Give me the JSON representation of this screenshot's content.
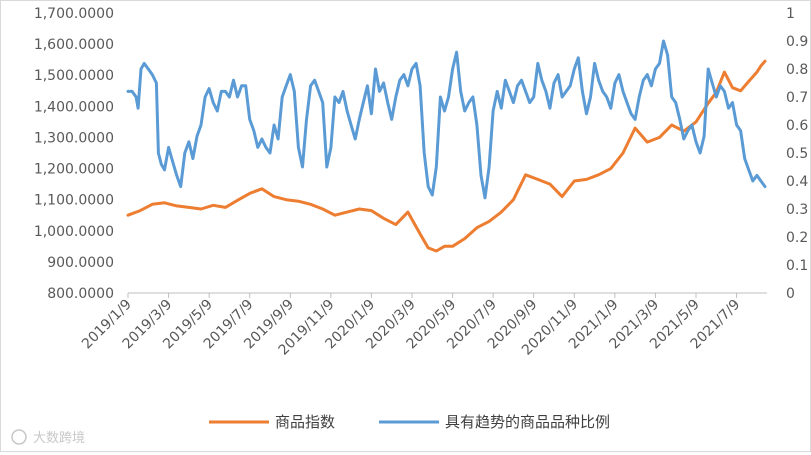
{
  "chart_data": {
    "type": "line",
    "title": "",
    "xlabel": "",
    "ylabel": "",
    "y_left": {
      "ylim": [
        800,
        1700
      ],
      "ticks": [
        "800.0000",
        "900.0000",
        "1,000.0000",
        "1,100.0000",
        "1,200.0000",
        "1,300.0000",
        "1,400.0000",
        "1,500.0000",
        "1,600.0000",
        "1,700.0000"
      ]
    },
    "y_right": {
      "ylim": [
        0,
        1
      ],
      "ticks": [
        "0",
        "0.1",
        "0.2",
        "0.3",
        "0.4",
        "0.5",
        "0.6",
        "0.7",
        "0.8",
        "0.9",
        "1"
      ]
    },
    "x_ticks": [
      "2019/1/9",
      "2019/3/9",
      "2019/5/9",
      "2019/7/9",
      "2019/9/9",
      "2019/11/9",
      "2020/1/9",
      "2020/3/9",
      "2020/5/9",
      "2020/7/9",
      "2020/9/9",
      "2020/11/9",
      "2021/1/9",
      "2021/3/9",
      "2021/5/9",
      "2021/7/9"
    ],
    "x_range": [
      0,
      15.75
    ],
    "grid": false,
    "legend_position": "bottom",
    "series": [
      {
        "name": "商品指数",
        "axis": "left",
        "color": "#ED7D31",
        "x": [
          0,
          0.3,
          0.6,
          0.9,
          1.2,
          1.5,
          1.8,
          2.1,
          2.4,
          2.7,
          3.0,
          3.3,
          3.6,
          3.9,
          4.2,
          4.5,
          4.8,
          5.1,
          5.4,
          5.7,
          6.0,
          6.3,
          6.6,
          6.9,
          7.2,
          7.4,
          7.6,
          7.8,
          8.0,
          8.3,
          8.6,
          8.9,
          9.2,
          9.5,
          9.8,
          10.1,
          10.4,
          10.7,
          11.0,
          11.3,
          11.6,
          11.9,
          12.2,
          12.5,
          12.8,
          13.1,
          13.4,
          13.7,
          14.0,
          14.3,
          14.5,
          14.7,
          14.9,
          15.1,
          15.3,
          15.5,
          15.6,
          15.7
        ],
        "values": [
          1050,
          1065,
          1085,
          1090,
          1080,
          1075,
          1070,
          1082,
          1075,
          1098,
          1120,
          1135,
          1110,
          1100,
          1095,
          1085,
          1070,
          1050,
          1060,
          1070,
          1065,
          1040,
          1020,
          1060,
          990,
          945,
          935,
          950,
          950,
          975,
          1010,
          1030,
          1060,
          1100,
          1180,
          1165,
          1150,
          1110,
          1160,
          1165,
          1180,
          1200,
          1250,
          1330,
          1285,
          1300,
          1340,
          1320,
          1350,
          1410,
          1445,
          1510,
          1460,
          1450,
          1480,
          1510,
          1530,
          1545
        ]
      },
      {
        "name": "具有趋势的商品品种比例",
        "axis": "right",
        "color": "#5B9BD5",
        "x": [
          0,
          0.1,
          0.2,
          0.25,
          0.32,
          0.4,
          0.5,
          0.6,
          0.7,
          0.75,
          0.82,
          0.9,
          1.0,
          1.1,
          1.2,
          1.3,
          1.4,
          1.5,
          1.6,
          1.7,
          1.8,
          1.9,
          2.0,
          2.1,
          2.2,
          2.3,
          2.4,
          2.5,
          2.6,
          2.7,
          2.8,
          2.9,
          3.0,
          3.1,
          3.2,
          3.3,
          3.4,
          3.5,
          3.6,
          3.7,
          3.8,
          3.9,
          4.0,
          4.1,
          4.2,
          4.3,
          4.4,
          4.5,
          4.6,
          4.7,
          4.8,
          4.9,
          5.0,
          5.1,
          5.2,
          5.3,
          5.4,
          5.5,
          5.6,
          5.7,
          5.8,
          5.9,
          6.0,
          6.1,
          6.2,
          6.3,
          6.4,
          6.5,
          6.6,
          6.7,
          6.8,
          6.9,
          7.0,
          7.1,
          7.2,
          7.3,
          7.4,
          7.5,
          7.6,
          7.7,
          7.8,
          7.9,
          8.0,
          8.1,
          8.2,
          8.3,
          8.4,
          8.5,
          8.6,
          8.7,
          8.8,
          8.9,
          9.0,
          9.1,
          9.2,
          9.3,
          9.4,
          9.5,
          9.6,
          9.7,
          9.8,
          9.9,
          10.0,
          10.1,
          10.2,
          10.3,
          10.4,
          10.5,
          10.6,
          10.7,
          10.8,
          10.9,
          11.0,
          11.1,
          11.2,
          11.3,
          11.4,
          11.5,
          11.6,
          11.7,
          11.8,
          11.9,
          12.0,
          12.1,
          12.2,
          12.3,
          12.4,
          12.5,
          12.6,
          12.7,
          12.8,
          12.9,
          13.0,
          13.1,
          13.2,
          13.3,
          13.4,
          13.5,
          13.6,
          13.7,
          13.8,
          13.9,
          14.0,
          14.1,
          14.2,
          14.3,
          14.4,
          14.5,
          14.6,
          14.7,
          14.8,
          14.9,
          15.0,
          15.1,
          15.2,
          15.3,
          15.4,
          15.5,
          15.6,
          15.7
        ],
        "values": [
          0.72,
          0.72,
          0.7,
          0.66,
          0.8,
          0.82,
          0.8,
          0.78,
          0.75,
          0.5,
          0.46,
          0.44,
          0.52,
          0.47,
          0.42,
          0.38,
          0.5,
          0.54,
          0.48,
          0.56,
          0.6,
          0.7,
          0.73,
          0.68,
          0.65,
          0.72,
          0.72,
          0.7,
          0.76,
          0.7,
          0.74,
          0.74,
          0.62,
          0.58,
          0.52,
          0.55,
          0.52,
          0.5,
          0.6,
          0.55,
          0.7,
          0.74,
          0.78,
          0.72,
          0.52,
          0.45,
          0.62,
          0.74,
          0.76,
          0.72,
          0.68,
          0.45,
          0.52,
          0.7,
          0.68,
          0.72,
          0.65,
          0.6,
          0.55,
          0.62,
          0.68,
          0.74,
          0.64,
          0.8,
          0.72,
          0.75,
          0.68,
          0.62,
          0.7,
          0.76,
          0.78,
          0.74,
          0.8,
          0.82,
          0.74,
          0.5,
          0.38,
          0.35,
          0.45,
          0.7,
          0.65,
          0.7,
          0.8,
          0.86,
          0.72,
          0.65,
          0.68,
          0.7,
          0.6,
          0.42,
          0.34,
          0.45,
          0.65,
          0.72,
          0.66,
          0.76,
          0.72,
          0.68,
          0.74,
          0.76,
          0.72,
          0.68,
          0.7,
          0.82,
          0.76,
          0.72,
          0.66,
          0.75,
          0.78,
          0.7,
          0.72,
          0.74,
          0.8,
          0.84,
          0.72,
          0.64,
          0.7,
          0.82,
          0.76,
          0.72,
          0.7,
          0.66,
          0.75,
          0.78,
          0.72,
          0.68,
          0.64,
          0.62,
          0.7,
          0.76,
          0.78,
          0.74,
          0.8,
          0.82,
          0.9,
          0.85,
          0.7,
          0.68,
          0.62,
          0.55,
          0.58,
          0.6,
          0.54,
          0.5,
          0.56,
          0.8,
          0.75,
          0.7,
          0.74,
          0.72,
          0.66,
          0.68,
          0.6,
          0.58,
          0.48,
          0.44,
          0.4,
          0.42,
          0.4,
          0.38
        ]
      }
    ]
  },
  "watermark": "大数跨境"
}
